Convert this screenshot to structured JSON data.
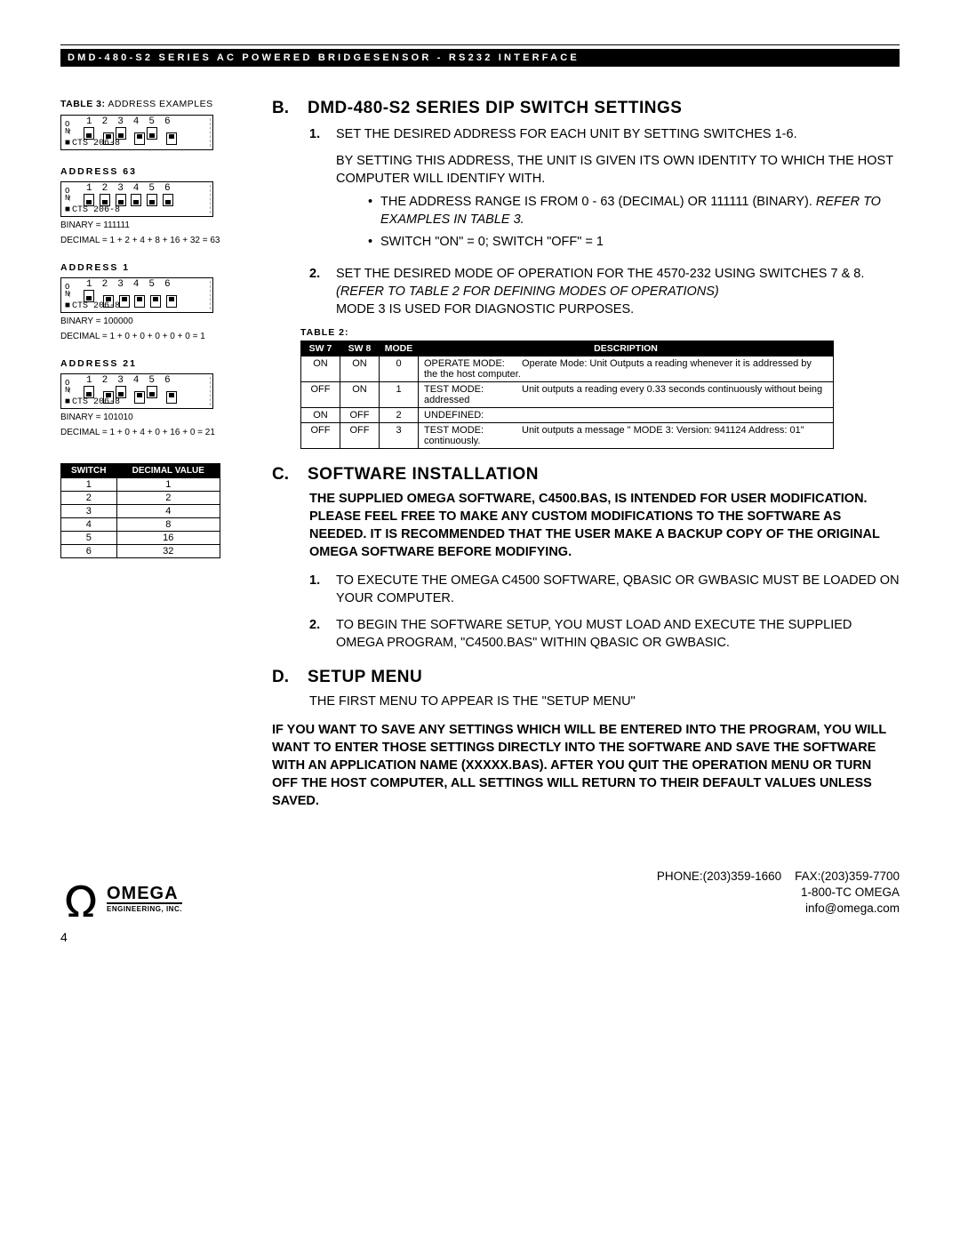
{
  "header": "DMD-480-S2 SERIES  AC POWERED BRIDGESENSOR - RS232 INTERFACE",
  "table3_label": {
    "prefix": "TABLE 3:",
    "suffix": "ADDRESS EXAMPLES"
  },
  "dip_examples": [
    {
      "addr_label": "",
      "nums": "1 2 3 4 5 6",
      "switches": [
        "off",
        "on",
        "off",
        "on",
        "off",
        "on"
      ],
      "cts": "CTS 206-8",
      "calc_lines": []
    },
    {
      "addr_label": "ADDRESS  63",
      "nums": "1 2 3 4 5 6",
      "switches": [
        "off",
        "off",
        "off",
        "off",
        "off",
        "off"
      ],
      "cts": "CTS 206-8",
      "calc_lines": [
        "BINARY = 111111",
        "DECIMAL = 1 + 2 + 4 + 8 + 16 + 32 = 63"
      ]
    },
    {
      "addr_label": "ADDRESS  1",
      "nums": "1 2 3 4 5 6",
      "switches": [
        "off",
        "on",
        "on",
        "on",
        "on",
        "on"
      ],
      "cts": "CTS 206-8",
      "calc_lines": [
        "BINARY = 100000",
        "DECIMAL = 1 + 0 + 0 + 0 + 0 + 0 = 1"
      ]
    },
    {
      "addr_label": "ADDRESS  21",
      "nums": "1 2 3 4 5 6",
      "switches": [
        "off",
        "on",
        "off",
        "on",
        "off",
        "on"
      ],
      "cts": "CTS 206-8",
      "calc_lines": [
        "BINARY = 101010",
        "DECIMAL = 1 + 0 + 4 + 0 + 16 + 0 = 21"
      ]
    }
  ],
  "dec_table": {
    "headers": [
      "SWITCH",
      "DECIMAL VALUE"
    ],
    "rows": [
      [
        "1",
        "1"
      ],
      [
        "2",
        "2"
      ],
      [
        "3",
        "4"
      ],
      [
        "4",
        "8"
      ],
      [
        "5",
        "16"
      ],
      [
        "6",
        "32"
      ]
    ]
  },
  "sectionB": {
    "letter": "B.",
    "title": "DMD-480-S2 SERIES DIP SWITCH SETTINGS",
    "item1_n": "1.",
    "item1_a": "SET THE DESIRED ADDRESS FOR EACH UNIT BY SETTING SWITCHES 1-6.",
    "item1_b": "BY SETTING THIS ADDRESS, THE UNIT IS GIVEN ITS OWN IDENTITY TO WHICH THE HOST COMPUTER WILL IDENTIFY WITH.",
    "bullet1a": "THE ADDRESS RANGE IS FROM 0 - 63 (DECIMAL) OR 111111 (BINARY).  ",
    "bullet1b": "REFER TO EXAMPLES IN TABLE 3.",
    "bullet2": "SWITCH \"ON\" = 0; SWITCH \"OFF\" = 1",
    "item2_n": "2.",
    "item2_a": "SET THE DESIRED MODE OF OPERATION FOR THE 4570-232 USING SWITCHES 7 & 8.",
    "item2_b": "(REFER TO TABLE 2 FOR  DEFINING MODES OF OPERATIONS)",
    "item2_c": "MODE 3 IS USED FOR DIAGNOSTIC PURPOSES."
  },
  "table2": {
    "label": "TABLE 2:",
    "headers": [
      "SW 7",
      "SW 8",
      "MODE",
      "DESCRIPTION"
    ],
    "rows": [
      {
        "sw7": "ON",
        "sw8": "ON",
        "mode": "0",
        "lab": "OPERATE MODE:",
        "desc": "Operate Mode: Unit Outputs a reading whenever it is addressed by the the host computer."
      },
      {
        "sw7": "OFF",
        "sw8": "ON",
        "mode": "1",
        "lab": "TEST MODE:",
        "desc": "Unit outputs a reading every 0.33 seconds continuously without being addressed"
      },
      {
        "sw7": "ON",
        "sw8": "OFF",
        "mode": "2",
        "lab": "UNDEFINED:",
        "desc": ""
      },
      {
        "sw7": "OFF",
        "sw8": "OFF",
        "mode": "3",
        "lab": "TEST MODE:",
        "desc": "Unit outputs a message \" MODE 3: Version: 941124 Address: 01\" continuously."
      }
    ]
  },
  "sectionC": {
    "letter": "C.",
    "title": "SOFTWARE INSTALLATION",
    "intro": "THE SUPPLIED OMEGA SOFTWARE, C4500.BAS, IS INTENDED FOR USER MODIFICATION.  PLEASE FEEL FREE TO MAKE ANY CUSTOM MODIFICATIONS TO THE SOFTWARE AS NEEDED.  IT IS RECOMMENDED THAT THE USER MAKE A BACKUP COPY OF THE ORIGINAL OMEGA SOFTWARE BEFORE MODIFYING.",
    "item1_n": "1.",
    "item1": "TO EXECUTE THE OMEGA C4500 SOFTWARE, QBASIC OR GWBASIC MUST BE LOADED ON YOUR COMPUTER.",
    "item2_n": "2.",
    "item2": "TO BEGIN THE SOFTWARE SETUP, YOU MUST LOAD AND EXECUTE THE SUPPLIED OMEGA PROGRAM, \"C4500.BAS\" WITHIN QBASIC OR GWBASIC."
  },
  "sectionD": {
    "letter": "D.",
    "title": "SETUP MENU",
    "line1": "THE FIRST MENU TO APPEAR IS THE \"SETUP MENU\"",
    "line2": "IF YOU WANT TO SAVE ANY SETTINGS WHICH WILL BE ENTERED INTO THE PROGRAM, YOU WILL WANT TO ENTER THOSE SETTINGS DIRECTLY INTO THE SOFTWARE AND SAVE THE SOFTWARE WITH AN APPLICATION NAME (XXXXX.BAS).  AFTER YOU QUIT THE OPERATION MENU OR TURN OFF THE HOST COMPUTER, ALL SETTINGS WILL RETURN TO THEIR DEFAULT VALUES UNLESS SAVED."
  },
  "footer": {
    "brand": "OMEGA",
    "sub": "ENGINEERING, INC.",
    "phone": "PHONE:(203)359-1660",
    "fax": "FAX:(203)359-7700",
    "toll": "1-800-TC OMEGA",
    "email": "info@omega.com",
    "pagenum": "4"
  }
}
